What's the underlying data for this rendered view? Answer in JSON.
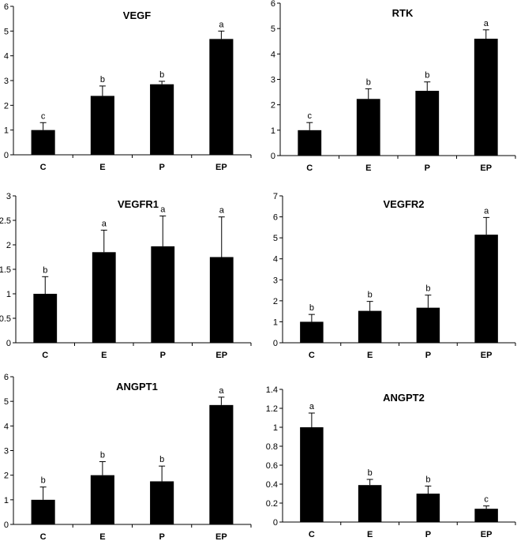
{
  "chart_data": [
    {
      "type": "bar",
      "title": "VEGF",
      "categories": [
        "C",
        "E",
        "P",
        "EP"
      ],
      "values": [
        1.0,
        2.38,
        2.85,
        4.68
      ],
      "errors": [
        0.3,
        0.4,
        0.12,
        0.32
      ],
      "significance": [
        "c",
        "b",
        "b",
        "a"
      ],
      "ylim": [
        0,
        6
      ],
      "yticks": [
        "0",
        "1",
        "2",
        "3",
        "4",
        "5",
        "6"
      ],
      "grid": false,
      "color": "#000000"
    },
    {
      "type": "bar",
      "title": "RTK",
      "categories": [
        "C",
        "E",
        "P",
        "EP"
      ],
      "values": [
        1.0,
        2.23,
        2.55,
        4.6
      ],
      "errors": [
        0.3,
        0.4,
        0.35,
        0.35
      ],
      "significance": [
        "c",
        "b",
        "b",
        "a"
      ],
      "ylim": [
        0,
        6
      ],
      "yticks": [
        "0",
        "1",
        "2",
        "3",
        "4",
        "5",
        "6"
      ],
      "grid": false,
      "color": "#000000"
    },
    {
      "type": "bar",
      "title": "VEGFR1",
      "categories": [
        "C",
        "E",
        "P",
        "EP"
      ],
      "values": [
        1.0,
        1.85,
        1.97,
        1.75
      ],
      "errors": [
        0.35,
        0.45,
        0.62,
        0.82
      ],
      "significance": [
        "b",
        "a",
        "a",
        "a"
      ],
      "ylim": [
        0,
        3
      ],
      "yticks": [
        "0",
        "0.5",
        "1",
        "1.5",
        "2",
        "2.5",
        "3"
      ],
      "grid": false,
      "color": "#000000"
    },
    {
      "type": "bar",
      "title": "VEGFR2",
      "categories": [
        "C",
        "E",
        "P",
        "EP"
      ],
      "values": [
        1.0,
        1.52,
        1.67,
        5.15
      ],
      "errors": [
        0.35,
        0.45,
        0.6,
        0.82
      ],
      "significance": [
        "b",
        "b",
        "b",
        "a"
      ],
      "ylim": [
        0,
        7
      ],
      "yticks": [
        "0",
        "1",
        "2",
        "3",
        "4",
        "5",
        "6",
        "7"
      ],
      "grid": false,
      "color": "#000000"
    },
    {
      "type": "bar",
      "title": "ANGPT1",
      "categories": [
        "C",
        "E",
        "P",
        "EP"
      ],
      "values": [
        1.0,
        2.0,
        1.75,
        4.85
      ],
      "errors": [
        0.52,
        0.55,
        0.62,
        0.32
      ],
      "significance": [
        "b",
        "b",
        "b",
        "a"
      ],
      "ylim": [
        0,
        6
      ],
      "yticks": [
        "0",
        "1",
        "2",
        "3",
        "4",
        "5",
        "6"
      ],
      "grid": false,
      "color": "#000000"
    },
    {
      "type": "bar",
      "title": "ANGPT2",
      "categories": [
        "C",
        "E",
        "P",
        "EP"
      ],
      "values": [
        1.0,
        0.39,
        0.3,
        0.14
      ],
      "errors": [
        0.15,
        0.06,
        0.08,
        0.03
      ],
      "significance": [
        "a",
        "b",
        "b",
        "c"
      ],
      "ylim": [
        0,
        1.4
      ],
      "yticks": [
        "0",
        "0.2",
        "0.4",
        "0.6",
        "0.8",
        "1",
        "1.2",
        "1.4"
      ],
      "grid": false,
      "color": "#000000"
    }
  ]
}
